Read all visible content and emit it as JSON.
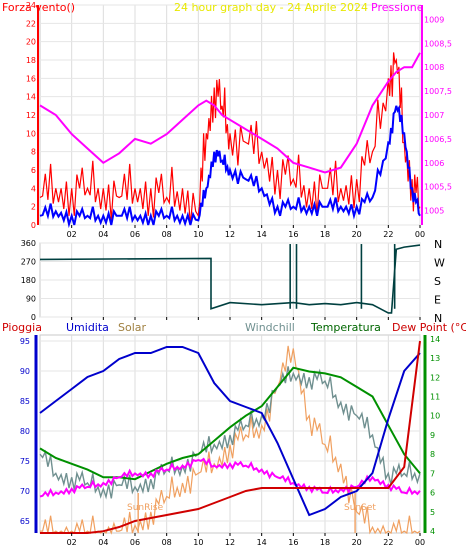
{
  "header": {
    "left_label": "Forza vento()",
    "title": "24 hour graph day - 24 Aprile 2024",
    "right_label": "Pressione"
  },
  "panel2": {
    "legend": [
      "Pioggia",
      "Umidita",
      "Solar",
      "Windchill",
      "Temperatura",
      "Dew Point (°C)"
    ],
    "annotations": [
      "SunRise",
      "SunSet"
    ]
  },
  "x_ticks": [
    "02",
    "04",
    "06",
    "08",
    "10",
    "12",
    "14",
    "16",
    "18",
    "20",
    "22",
    "00"
  ],
  "colors": {
    "wind_gust": "#ff0000",
    "wind_avg": "#0000ff",
    "pressure": "#ff00ff",
    "wind_dir": "#004040",
    "rain": "#d00000",
    "humidity": "#0000cc",
    "solar": "#f0a060",
    "windchill": "#709090",
    "temperature": "#009000",
    "dewpoint": "#ff00ff",
    "temp_title": "#006600",
    "dew_title": "#cc0000",
    "title_yellow": "#e8e800",
    "left_axis": "#0000cc"
  },
  "chart_data": [
    {
      "type": "line",
      "x_hours": [
        0,
        1,
        2,
        3,
        4,
        5,
        6,
        7,
        8,
        9,
        10,
        10.5,
        11,
        11.5,
        12,
        13,
        14,
        15,
        16,
        17,
        18,
        19,
        20,
        21,
        22,
        22.5,
        23,
        23.5,
        24
      ],
      "x_ticks": [
        "02",
        "04",
        "06",
        "08",
        "10",
        "12",
        "14",
        "16",
        "18",
        "20",
        "22",
        "00"
      ],
      "y_left_ticks": [
        "0",
        "2",
        "4",
        "6",
        "8",
        "10",
        "12",
        "14",
        "16",
        "18",
        "20",
        "22",
        "24"
      ],
      "y_left_range": [
        0,
        24
      ],
      "y_right_ticks": [
        "1005",
        "1005,5",
        "1006",
        "1006,5",
        "1007",
        "1007,5",
        "1008",
        "1008,5",
        "1009"
      ],
      "y_right_range": [
        1004.7,
        1009.3
      ],
      "series": [
        {
          "name": "Forza vento()",
          "axis": "left",
          "values": [
            3,
            4,
            4,
            4,
            4,
            3,
            4,
            4,
            3,
            4,
            1,
            10,
            15,
            13,
            10,
            9,
            8,
            6,
            5,
            4,
            4,
            4,
            5,
            8,
            16,
            18,
            9,
            5,
            2
          ]
        },
        {
          "name": "",
          "axis": "left",
          "values": [
            1,
            1.5,
            1,
            1,
            1,
            1,
            1,
            1,
            1,
            1,
            0.5,
            4,
            8,
            7,
            6,
            5,
            4,
            2,
            2,
            2,
            2,
            2,
            2,
            3,
            9,
            13,
            10,
            4,
            1
          ]
        },
        {
          "name": "Pressione",
          "axis": "right",
          "values": [
            1007.2,
            1007.0,
            1006.6,
            1006.3,
            1006.0,
            1006.2,
            1006.5,
            1006.4,
            1006.6,
            1006.9,
            1007.2,
            1007.3,
            1007.2,
            1007.0,
            1006.9,
            1006.7,
            1006.5,
            1006.3,
            1006.0,
            1005.9,
            1005.8,
            1005.9,
            1006.4,
            1007.2,
            1007.7,
            1007.9,
            1008.0,
            1008.0,
            1008.3
          ]
        }
      ]
    },
    {
      "type": "line",
      "x_hours": [
        0,
        10.8,
        10.8,
        12,
        14,
        16,
        17,
        18,
        19,
        20,
        21,
        22,
        22.2,
        22.5,
        23,
        24
      ],
      "y_ticks": [
        "360",
        "270",
        "180",
        "90",
        "0"
      ],
      "y_range": [
        0,
        360
      ],
      "side_labels": [
        "N",
        "W",
        "S",
        "E",
        "N"
      ],
      "series": [
        {
          "name": "",
          "values": [
            280,
            285,
            40,
            70,
            60,
            70,
            60,
            65,
            60,
            70,
            60,
            20,
            20,
            330,
            340,
            350
          ]
        }
      ]
    },
    {
      "type": "line",
      "x_hours": [
        0,
        1,
        2,
        3,
        4,
        5,
        6,
        7,
        8,
        9,
        10,
        11,
        12,
        13,
        14,
        15,
        16,
        17,
        18,
        19,
        20,
        21,
        22,
        23,
        24
      ],
      "y_left_ticks": [
        "65",
        "70",
        "75",
        "80",
        "85",
        "90",
        "95"
      ],
      "y_left_range": [
        63,
        96
      ],
      "y_right_ticks": [
        "4",
        "5",
        "6",
        "7",
        "8",
        "9",
        "10",
        "11",
        "12",
        "13",
        "14"
      ],
      "y_right_range": [
        3.9,
        14.2
      ],
      "series": [
        {
          "name": "Umidita",
          "axis": "left",
          "values": [
            83,
            85,
            87,
            89,
            90,
            92,
            93,
            93,
            94,
            94,
            93,
            88,
            85,
            84,
            83,
            78,
            72,
            66,
            67,
            69,
            70,
            73,
            82,
            90,
            93
          ]
        },
        {
          "name": "Windchill",
          "axis": "right",
          "values": [
            8,
            7,
            6.8,
            6.5,
            6.2,
            6.4,
            6.3,
            6.7,
            7.2,
            7.4,
            8,
            8.5,
            9,
            9.5,
            10,
            11.5,
            12.2,
            12,
            11.8,
            10.7,
            10,
            9,
            7,
            7,
            7
          ]
        },
        {
          "name": "Temperatura",
          "axis": "right",
          "values": [
            8.3,
            7.8,
            7.5,
            7.2,
            6.8,
            6.8,
            6.7,
            7.1,
            7.5,
            7.8,
            8,
            8.7,
            9.4,
            10,
            10.5,
            11.5,
            12.5,
            12.3,
            12.2,
            12,
            11.5,
            11,
            9.5,
            8,
            7
          ]
        },
        {
          "name": "Dew Point (°C)",
          "axis": "right",
          "values": [
            5.8,
            6,
            6.2,
            6.3,
            6.5,
            6.8,
            7,
            7,
            7.2,
            7.4,
            7.7,
            7.4,
            7.5,
            7.4,
            7.2,
            6.8,
            6.5,
            6.3,
            6.0,
            6.2,
            6.3,
            6.8,
            6.4,
            6,
            6.1
          ]
        },
        {
          "name": "Solar",
          "axis": "right",
          "values": [
            4,
            4,
            4,
            4,
            4,
            4,
            4.3,
            5,
            5.8,
            6.5,
            7,
            7.5,
            8.5,
            9,
            9.5,
            11.5,
            13.5,
            10,
            8.5,
            7.5,
            5,
            4.2,
            4,
            4,
            4
          ]
        },
        {
          "name": "Pioggia",
          "axis": "left",
          "values": [
            63,
            63,
            63,
            63,
            63.3,
            64,
            65,
            65.5,
            66,
            66.5,
            67,
            68,
            69,
            70,
            70.5,
            70.5,
            70.5,
            70.5,
            70.5,
            70.5,
            70.5,
            70.5,
            70.5,
            74,
            95
          ]
        }
      ]
    }
  ]
}
